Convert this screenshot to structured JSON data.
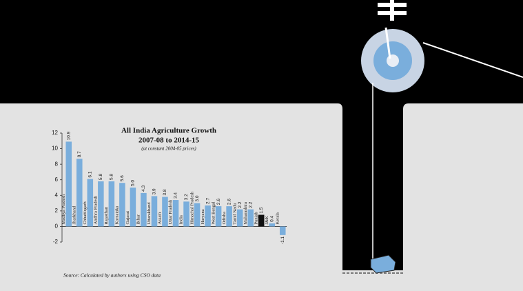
{
  "chart_data": {
    "type": "bar",
    "title": "All India Agriculture Growth",
    "subtitle": "2007-08 to 2014-15",
    "note": "(at constant 2004-05 prices)",
    "source": "Source: Calculated by authors using CSO data",
    "categories": [
      "Madhya Pradesh",
      "Jharkhand",
      "Chhattisgarh",
      "Andhra Pradesh",
      "Rajasthan",
      "Karnataka",
      "Gujarat",
      "Bihar",
      "Uttarakhand",
      "Assam",
      "Uttar Pradesh",
      "India",
      "Himachal Pradesh",
      "Haryana",
      "West Bengal",
      "Odisha",
      "Tamil Nadu",
      "Maharashtra",
      "Punjab",
      "J&K",
      "Kerala"
    ],
    "values": [
      10.9,
      8.7,
      6.1,
      5.8,
      5.8,
      5.6,
      5,
      4.3,
      3.9,
      3.8,
      3.4,
      3.2,
      3,
      2.7,
      2.6,
      2.6,
      2.2,
      2.2,
      1.5,
      0.4,
      -1.1
    ],
    "value_labels": [
      "10.9",
      "8.7",
      "6.1",
      "5.8",
      "5.8",
      "5.6",
      "5.0",
      "4.3",
      "3.9",
      "3.8",
      "3.4",
      "3.2",
      "3.0",
      "2.7",
      "2.6",
      "2.6",
      "2.2",
      "2.2",
      "1.5",
      "0.4",
      "-1.1"
    ],
    "colors": [
      "#7aaedc",
      "#7aaedc",
      "#7aaedc",
      "#7aaedc",
      "#7aaedc",
      "#7aaedc",
      "#7aaedc",
      "#7aaedc",
      "#7aaedc",
      "#7aaedc",
      "#7aaedc",
      "#7aaedc",
      "#7aaedc",
      "#7aaedc",
      "#7aaedc",
      "#7aaedc",
      "#7aaedc",
      "#7aaedc",
      "#111111",
      "#7aaedc",
      "#7aaedc"
    ],
    "ylim": [
      -2,
      12
    ],
    "yticks": [
      -2,
      0,
      2,
      4,
      6,
      8,
      10,
      12
    ]
  }
}
